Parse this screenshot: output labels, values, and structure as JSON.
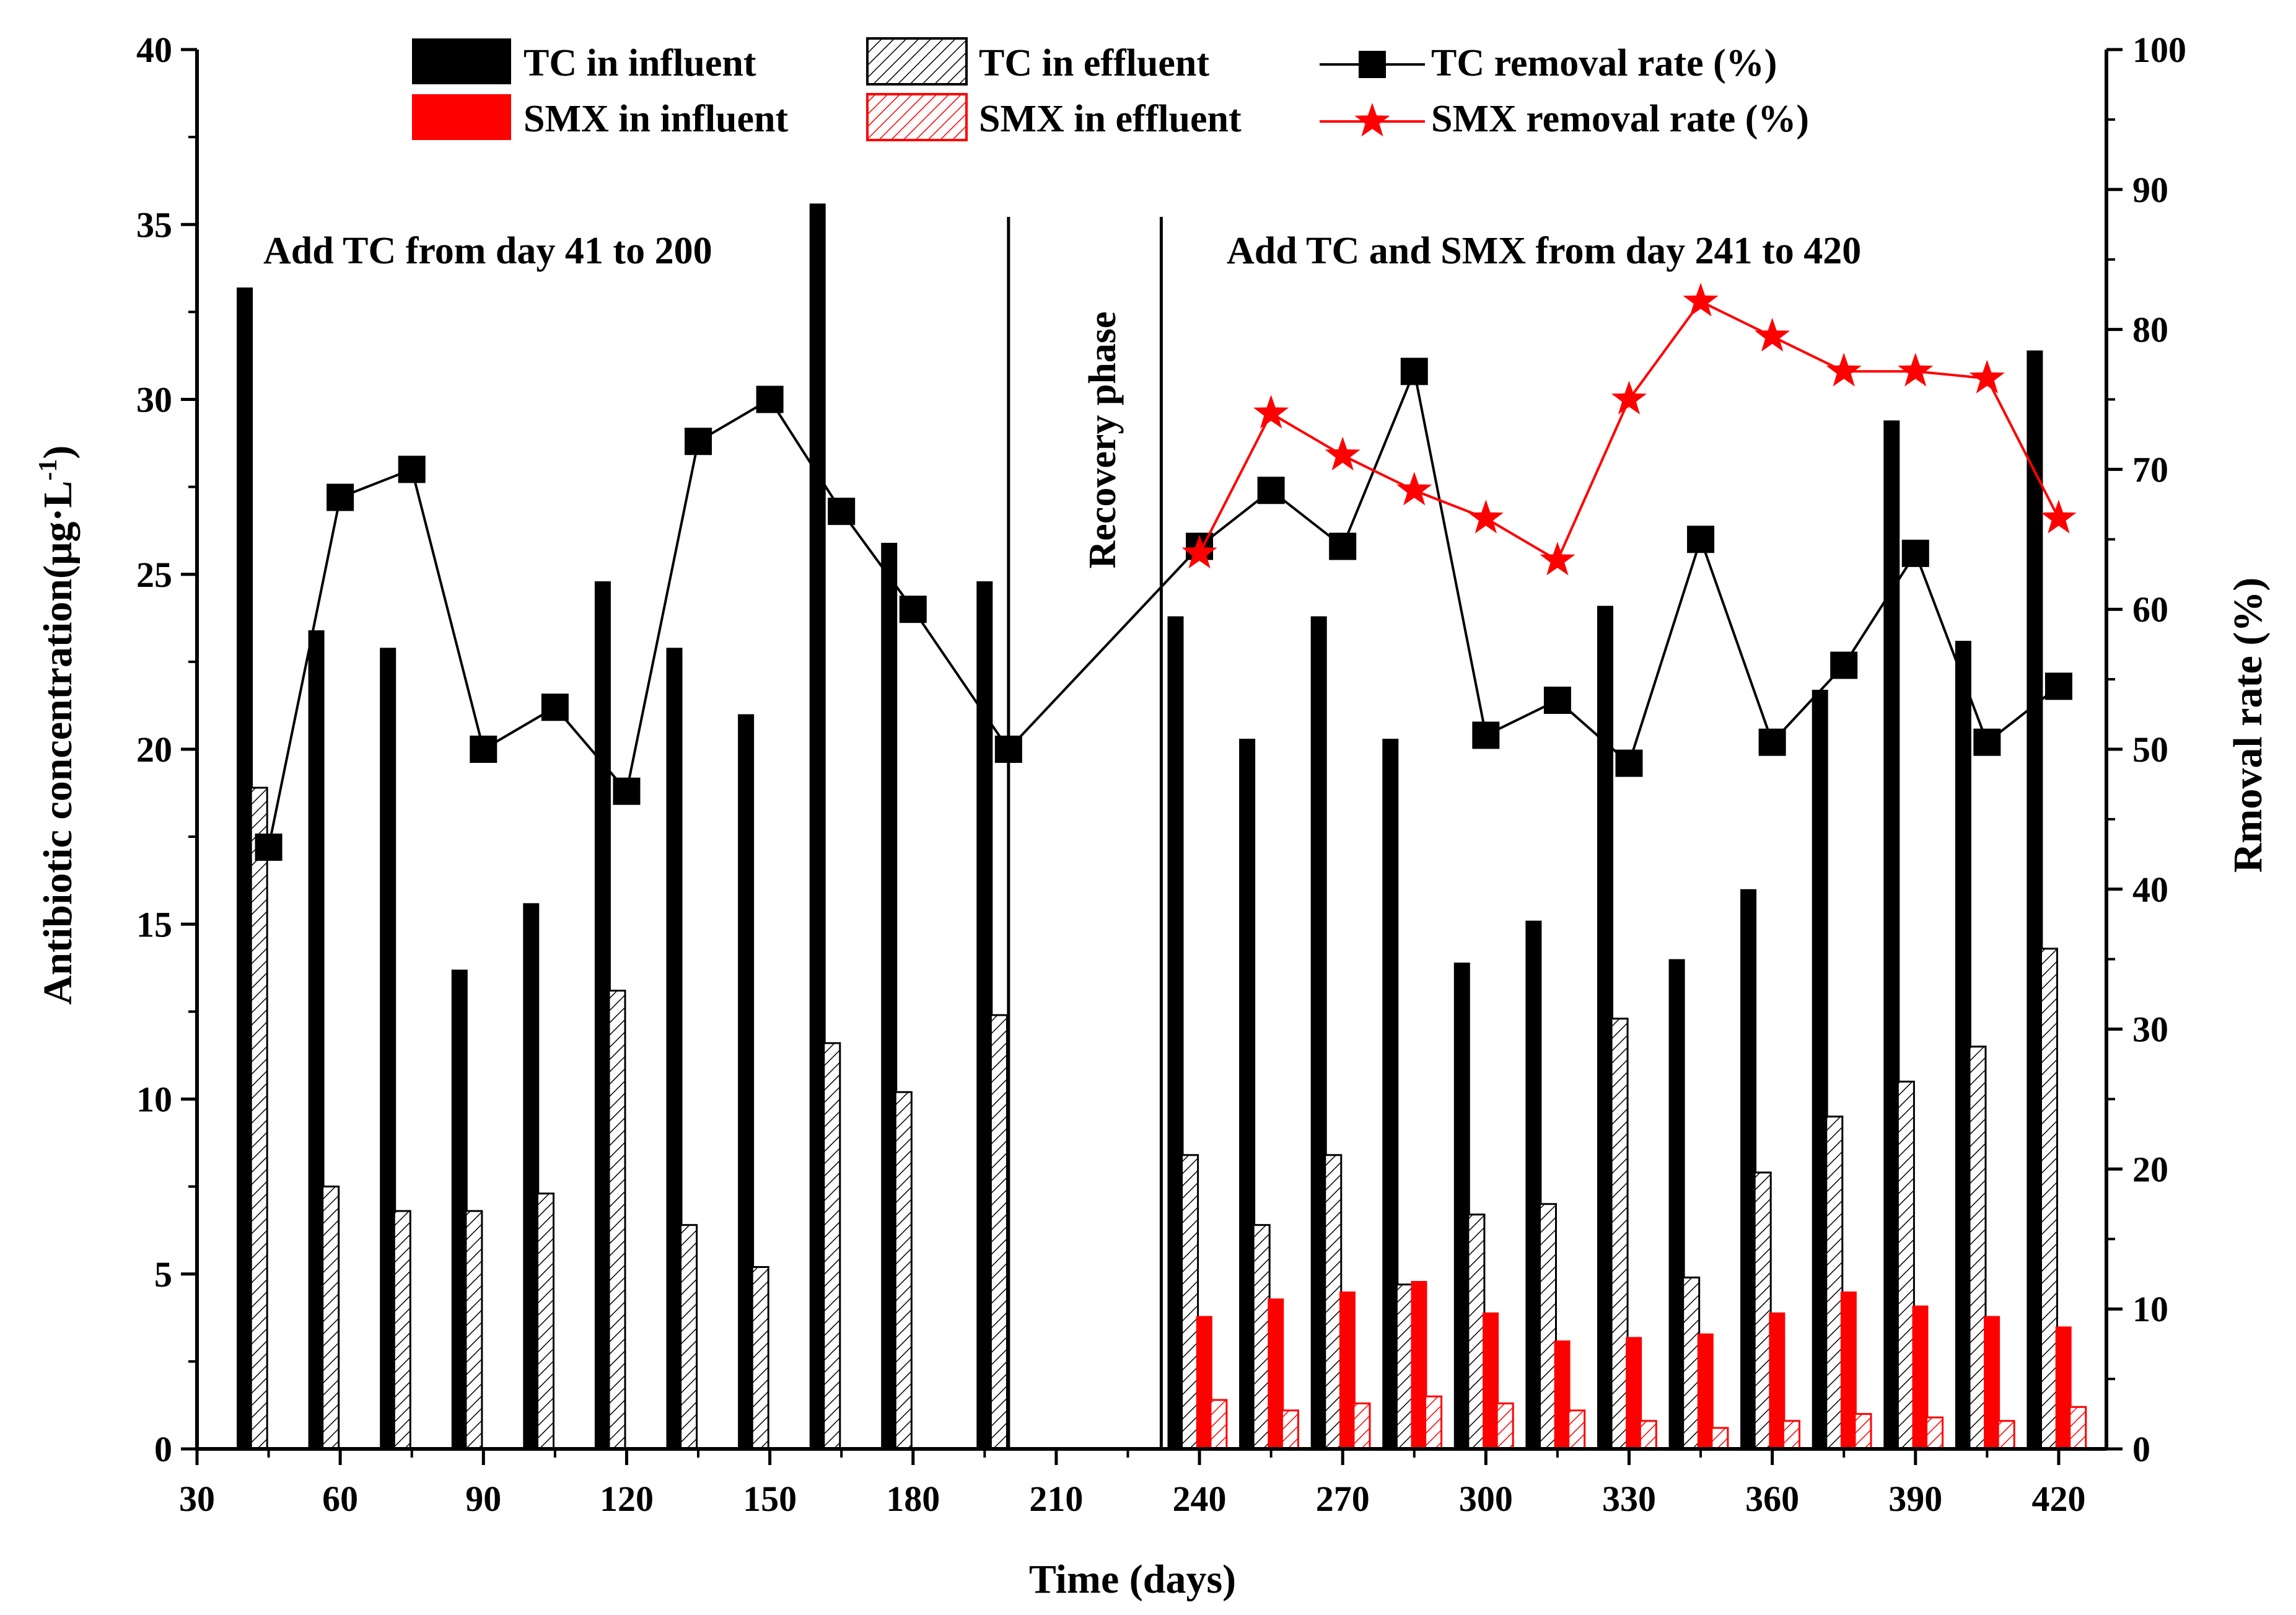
{
  "chart_data": {
    "type": "bar",
    "title": "",
    "xlabel": "Time (days)",
    "ylabel_left": "Antibiotic concentration(μg·L",
    "ylabel_left_sup": "-1",
    "ylabel_left_close": ")",
    "ylabel_right": "Rmoval rate (%)",
    "xlim": [
      30,
      430
    ],
    "ylim_left": [
      0,
      40
    ],
    "ylim_right": [
      0,
      100
    ],
    "x_ticks": [
      30,
      60,
      90,
      120,
      150,
      180,
      210,
      240,
      270,
      300,
      330,
      360,
      390,
      420
    ],
    "y_left_ticks": [
      0,
      5,
      10,
      15,
      20,
      25,
      30,
      35,
      40
    ],
    "y_right_ticks": [
      0,
      10,
      20,
      30,
      40,
      50,
      60,
      70,
      80,
      90,
      100
    ],
    "legend_position": "top",
    "colors": {
      "tc": "#000000",
      "smx": "#ff0000"
    },
    "annotations": {
      "phase1": "Add TC from day 41 to 200",
      "recovery": "Recovery phase",
      "phase2": "Add TC and SMX  from day 241 to 420"
    },
    "phase_dividers": [
      200,
      232
    ],
    "series": [
      {
        "name": "TC in influent",
        "kind": "bar",
        "fill": "solid",
        "color": "#000000",
        "x": [
          40,
          55,
          70,
          85,
          100,
          115,
          130,
          145,
          160,
          175,
          195,
          235,
          250,
          265,
          280,
          295,
          310,
          325,
          340,
          355,
          370,
          385,
          400,
          415
        ],
        "values": [
          33.2,
          23.4,
          22.9,
          13.7,
          15.6,
          24.8,
          22.9,
          21.0,
          35.6,
          25.9,
          24.8,
          23.8,
          20.3,
          23.8,
          20.3,
          13.9,
          15.1,
          24.1,
          14.0,
          16.0,
          21.7,
          29.4,
          23.1,
          31.4
        ]
      },
      {
        "name": "TC in effluent",
        "kind": "bar",
        "fill": "hatch",
        "color": "#000000",
        "x": [
          43,
          58,
          73,
          88,
          103,
          118,
          133,
          148,
          163,
          178,
          198,
          238,
          253,
          268,
          283,
          298,
          313,
          328,
          343,
          358,
          373,
          388,
          403,
          418
        ],
        "values": [
          18.9,
          7.5,
          6.8,
          6.8,
          7.3,
          13.1,
          6.4,
          5.2,
          11.6,
          10.2,
          12.4,
          8.4,
          6.4,
          8.4,
          4.7,
          6.7,
          7.0,
          12.3,
          4.9,
          7.9,
          9.5,
          10.5,
          11.5,
          14.3
        ]
      },
      {
        "name": "SMX in influent",
        "kind": "bar",
        "fill": "solid",
        "color": "#ff0000",
        "x": [
          241,
          256,
          271,
          286,
          301,
          316,
          331,
          346,
          361,
          376,
          391,
          406,
          421
        ],
        "values": [
          3.8,
          4.3,
          4.5,
          4.8,
          3.9,
          3.1,
          3.2,
          3.3,
          3.9,
          4.5,
          4.1,
          3.8,
          3.5
        ]
      },
      {
        "name": "SMX in effluent",
        "kind": "bar",
        "fill": "hatch",
        "color": "#ff0000",
        "x": [
          244,
          259,
          274,
          289,
          304,
          319,
          334,
          349,
          364,
          379,
          394,
          409,
          424
        ],
        "values": [
          1.4,
          1.1,
          1.3,
          1.5,
          1.3,
          1.1,
          0.8,
          0.6,
          0.8,
          1.0,
          0.9,
          0.8,
          1.2
        ]
      },
      {
        "name": "TC removal rate (%)",
        "kind": "line",
        "marker": "square",
        "color": "#000000",
        "axis": "right",
        "x": [
          45,
          60,
          75,
          90,
          105,
          120,
          135,
          150,
          165,
          180,
          200,
          240,
          255,
          270,
          285,
          300,
          315,
          330,
          345,
          360,
          375,
          390,
          405,
          420
        ],
        "values": [
          43,
          68,
          70,
          50,
          53,
          47,
          72,
          75,
          67,
          60,
          50,
          64.5,
          68.5,
          64.5,
          77,
          51,
          53.5,
          49,
          65,
          50.5,
          56,
          64,
          50.5,
          54.5
        ]
      },
      {
        "name": "SMX removal rate (%)",
        "kind": "line",
        "marker": "star",
        "color": "#ff0000",
        "axis": "right",
        "x": [
          240,
          255,
          270,
          285,
          300,
          315,
          330,
          345,
          360,
          375,
          390,
          405,
          420
        ],
        "values": [
          64,
          74,
          71,
          68.5,
          66.5,
          63.5,
          75,
          82,
          79.5,
          77,
          77,
          76.5,
          66.5
        ]
      }
    ]
  }
}
